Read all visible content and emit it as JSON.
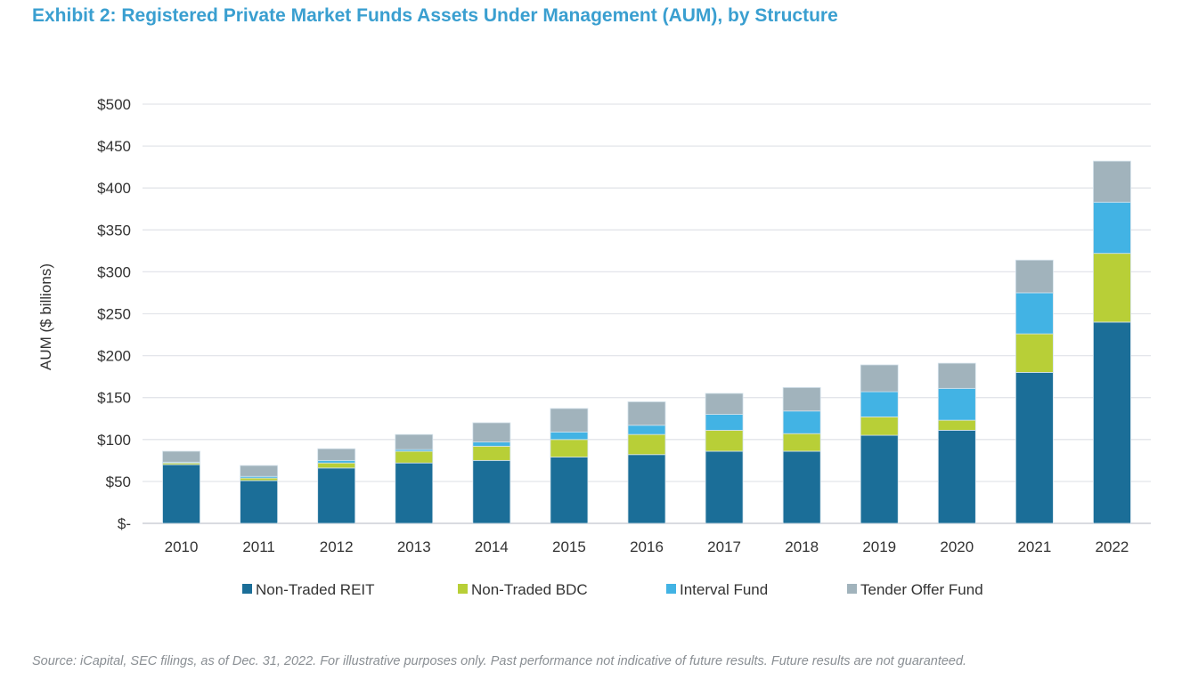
{
  "title": "Exhibit 2: Registered Private Market Funds Assets Under Management (AUM), by Structure",
  "source": "Source: iCapital, SEC filings, as of Dec. 31, 2022. For illustrative purposes only. Past performance not indicative of future results. Future results are not guaranteed.",
  "chart_data": {
    "type": "bar",
    "stacked": true,
    "title": "Exhibit 2: Registered Private Market Funds Assets Under Management (AUM), by Structure",
    "xlabel": "",
    "ylabel": "AUM ($ billions)",
    "ylim": [
      0,
      500
    ],
    "yticks": [
      0,
      50,
      100,
      150,
      200,
      250,
      300,
      350,
      400,
      450,
      500
    ],
    "ytick_labels": [
      "$-",
      "$50",
      "$100",
      "$150",
      "$200",
      "$250",
      "$300",
      "$350",
      "$400",
      "$450",
      "$500"
    ],
    "grid": true,
    "legend_position": "bottom",
    "categories": [
      "2010",
      "2011",
      "2012",
      "2013",
      "2014",
      "2015",
      "2016",
      "2017",
      "2018",
      "2019",
      "2020",
      "2021",
      "2022"
    ],
    "series": [
      {
        "name": "Non-Traded REIT",
        "color": "#1b6e98",
        "values": [
          70,
          51,
          66,
          72,
          75,
          79,
          82,
          86,
          86,
          105,
          111,
          180,
          240
        ]
      },
      {
        "name": "Non-Traded BDC",
        "color": "#b8cf37",
        "values": [
          2,
          3,
          6,
          14,
          17,
          21,
          24,
          25,
          21,
          22,
          12,
          46,
          82
        ]
      },
      {
        "name": "Interval Fund",
        "color": "#42b3e4",
        "values": [
          1,
          2,
          3,
          2,
          5,
          9,
          11,
          19,
          27,
          30,
          38,
          49,
          61
        ]
      },
      {
        "name": "Tender Offer Fund",
        "color": "#a1b3bc",
        "values": [
          13,
          13,
          14,
          18,
          23,
          28,
          28,
          25,
          28,
          32,
          30,
          39,
          49
        ]
      }
    ]
  }
}
